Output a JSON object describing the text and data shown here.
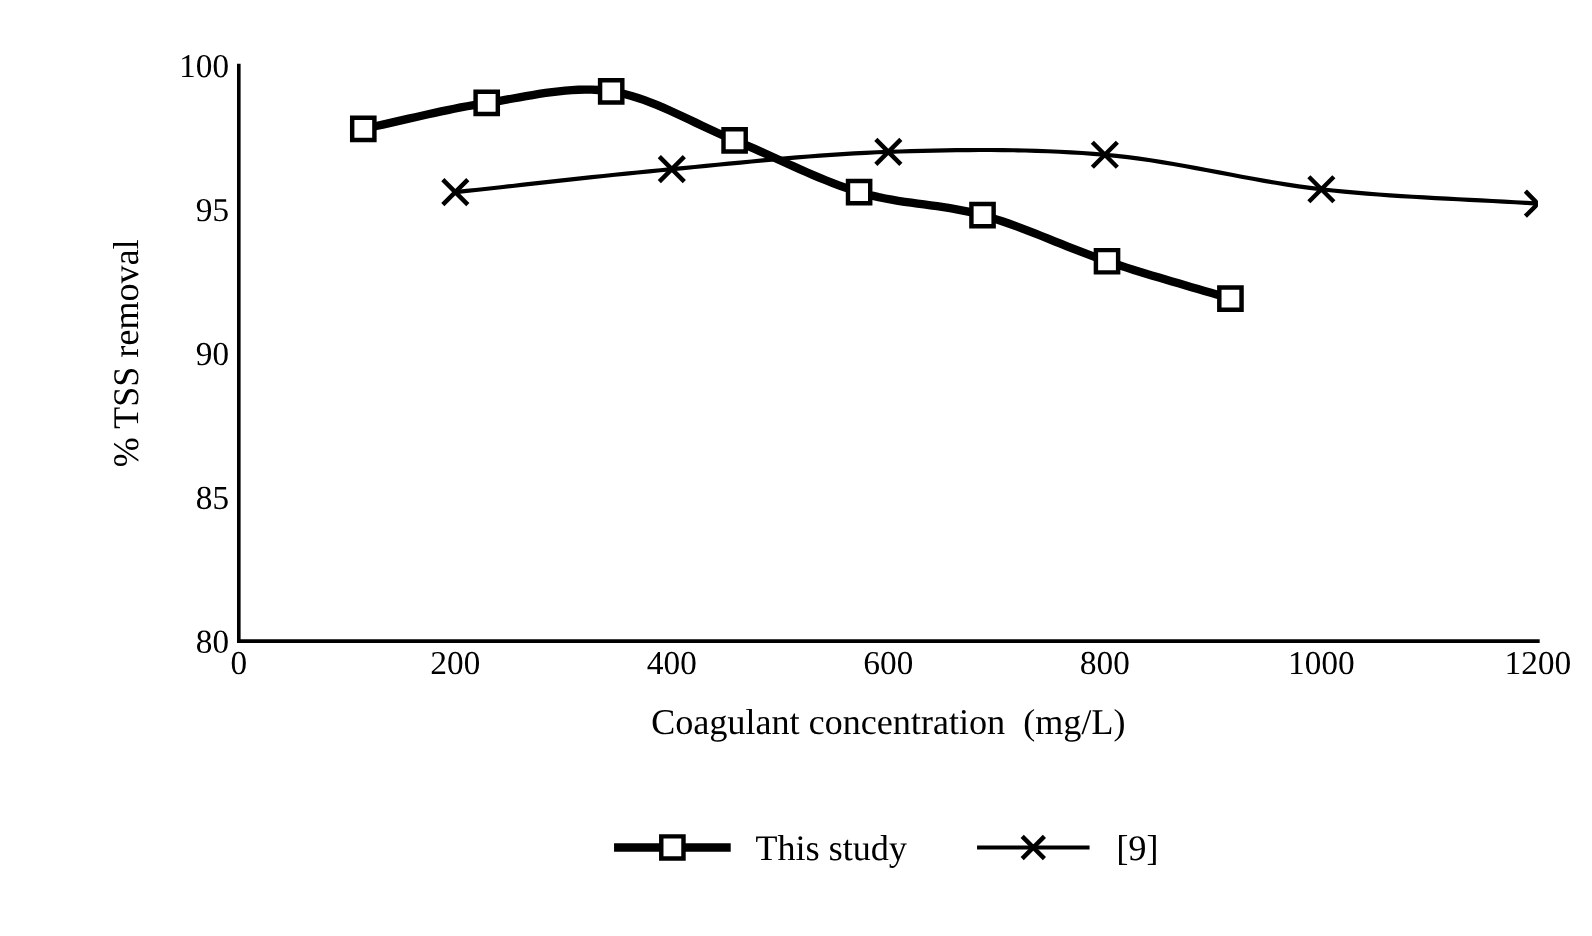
{
  "chart_data": {
    "type": "line",
    "xlabel": "Coagulant concentration  (mg/L)",
    "ylabel": "% TSS removal",
    "xlim": [
      0,
      1200
    ],
    "xticks": [
      0,
      200,
      400,
      600,
      800,
      1000,
      1200
    ],
    "ylim": [
      80,
      100
    ],
    "yticks": [
      80,
      85,
      90,
      95,
      100
    ],
    "grid": false,
    "legend": "bottom",
    "series": [
      {
        "name": "This study",
        "color": "#000000",
        "marker": "square",
        "x": [
          115,
          229,
          344,
          458,
          573,
          687,
          802,
          916
        ],
        "values": [
          97.8,
          98.7,
          99.1,
          97.4,
          95.6,
          94.8,
          93.2,
          91.9
        ]
      },
      {
        "name": "[9]",
        "color": "#000000",
        "marker": "cross",
        "x": [
          200,
          400,
          600,
          800,
          1000,
          1200
        ],
        "values": [
          95.6,
          96.4,
          97.0,
          96.9,
          95.7,
          95.2
        ]
      }
    ]
  }
}
